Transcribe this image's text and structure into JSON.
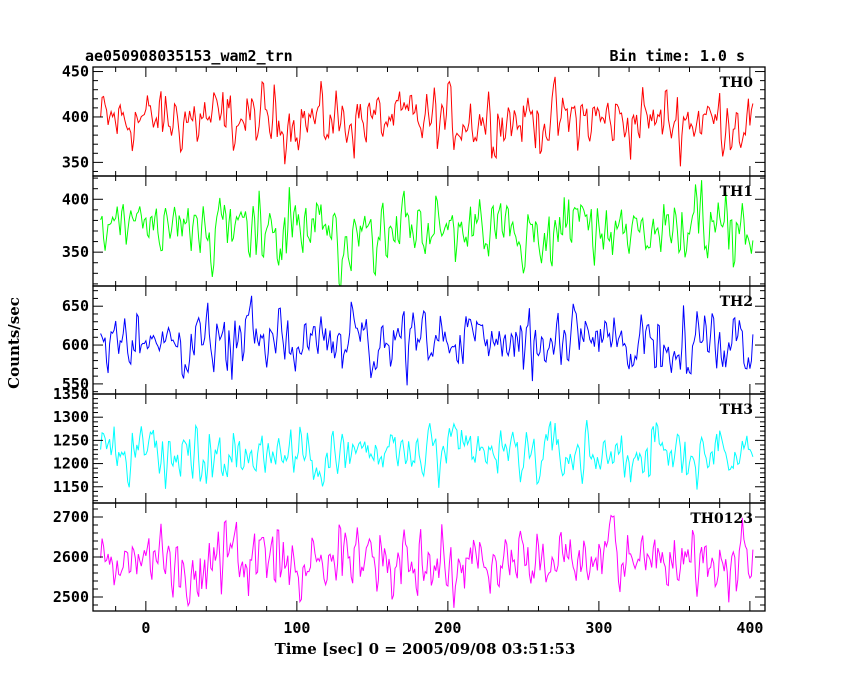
{
  "chart_data": {
    "type": "line",
    "title": "ae050908035153_wam2_trn",
    "subtitle": "Bin time: 1.0 s",
    "xlabel": "Time [sec] 0 = 2005/09/08 03:51:53",
    "ylabel": "Counts/sec",
    "xlim": [
      -35,
      410
    ],
    "xticks": [
      0,
      100,
      200,
      300,
      400
    ],
    "xtick_labels": [
      "0",
      "100",
      "200",
      "300",
      "400"
    ],
    "x_start": -30,
    "x_end": 402,
    "bin": 1.0,
    "grid": false,
    "panels": [
      {
        "name": "TH0",
        "color": "#ff0000",
        "ylim": [
          335,
          455
        ],
        "mean": 397,
        "amplitude": 22,
        "yticks": [
          350,
          400,
          450
        ],
        "ytick_labels": [
          "350",
          "400",
          "450"
        ]
      },
      {
        "name": "TH1",
        "color": "#00ff00",
        "ylim": [
          318,
          422
        ],
        "mean": 370,
        "amplitude": 20,
        "yticks": [
          350,
          400
        ],
        "ytick_labels": [
          "350",
          "400"
        ]
      },
      {
        "name": "TH2",
        "color": "#0000ff",
        "ylim": [
          537,
          676
        ],
        "mean": 605,
        "amplitude": 25,
        "yticks": [
          550,
          600,
          650
        ],
        "ytick_labels": [
          "550",
          "600",
          "650"
        ]
      },
      {
        "name": "TH3",
        "color": "#00ffff",
        "ylim": [
          1115,
          1350
        ],
        "mean": 1220,
        "amplitude": 38,
        "yticks": [
          1150,
          1200,
          1250,
          1300,
          1350
        ],
        "ytick_labels": [
          "1150",
          "1200",
          "1250",
          "1300",
          "1350"
        ]
      },
      {
        "name": "TH0123",
        "color": "#ff00ff",
        "ylim": [
          2465,
          2735
        ],
        "mean": 2590,
        "amplitude": 55,
        "yticks": [
          2500,
          2600,
          2700
        ],
        "ytick_labels": [
          "2500",
          "2600",
          "2700"
        ]
      }
    ]
  }
}
